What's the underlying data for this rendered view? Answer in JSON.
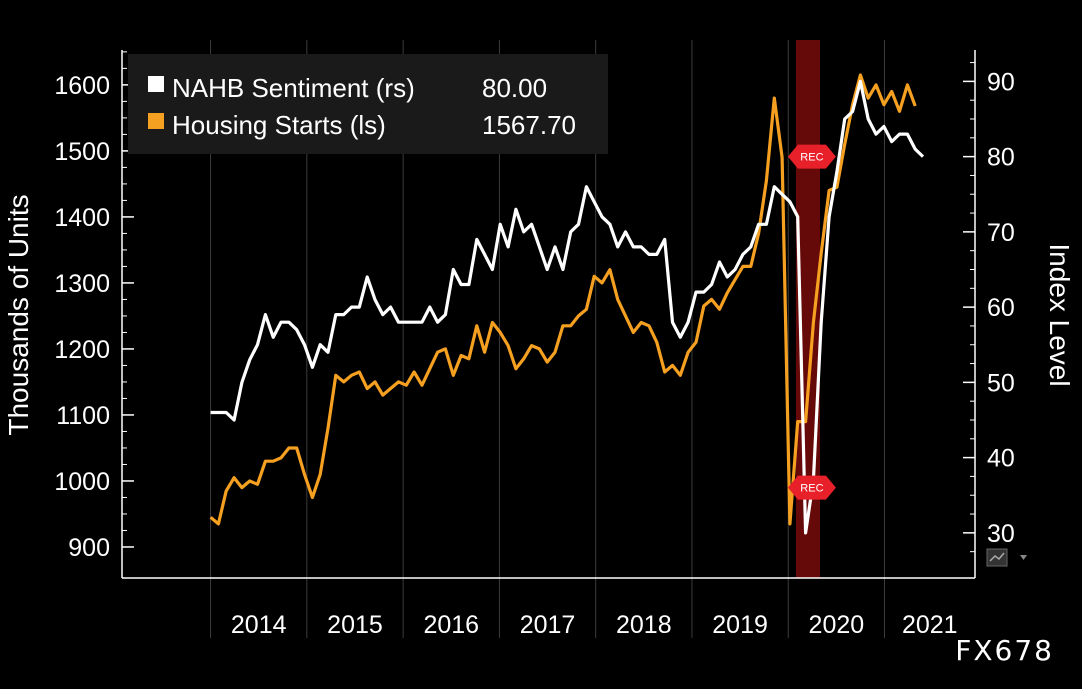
{
  "chart_data": {
    "type": "line",
    "title": "",
    "xlabel": "",
    "ylabel_left": "Thousands of Units",
    "ylabel_right": "Index Level",
    "x_start_year": 2014.0,
    "x_end_year": 2021.4,
    "xlim": [
      2013.08,
      2021.94
    ],
    "ylim_left": [
      853,
      1668
    ],
    "ylim_right": [
      24,
      95.5
    ],
    "left_ticks": [
      900,
      1000,
      1100,
      1200,
      1300,
      1400,
      1500,
      1600
    ],
    "right_ticks": [
      30,
      40,
      50,
      60,
      70,
      80,
      90
    ],
    "year_labels": [
      "2014",
      "2015",
      "2016",
      "2017",
      "2018",
      "2019",
      "2020",
      "2021"
    ],
    "recession_band": [
      2020.08,
      2020.33
    ],
    "series": [
      {
        "name": "NAHB Sentiment (rs)",
        "last_value": "80.00",
        "color": "#ffffff",
        "axis": "right",
        "values": [
          46,
          46,
          46,
          45,
          50,
          53,
          55,
          59,
          56,
          58,
          58,
          57,
          55,
          52,
          55,
          54,
          59,
          59,
          60,
          60,
          64,
          61,
          59,
          60,
          58,
          58,
          58,
          58,
          60,
          58,
          59,
          65,
          63,
          63,
          69,
          67,
          65,
          71,
          68,
          73,
          70,
          71,
          68,
          65,
          68,
          65,
          70,
          71,
          76,
          74,
          72,
          71,
          68,
          70,
          68,
          68,
          67,
          67,
          69,
          58,
          56,
          58,
          62,
          62,
          63,
          66,
          64,
          65,
          67,
          68,
          71,
          71,
          76,
          75,
          74,
          72,
          30,
          37,
          58,
          72,
          78,
          85,
          86,
          90,
          85,
          83,
          84,
          82,
          83,
          83,
          81,
          80
        ]
      },
      {
        "name": "Housing Starts (ls)",
        "last_value": "1567.70",
        "color": "#f5a020",
        "axis": "left",
        "values": [
          945,
          935,
          985,
          1005,
          990,
          1000,
          995,
          1030,
          1030,
          1035,
          1050,
          1050,
          1010,
          975,
          1010,
          1080,
          1160,
          1150,
          1160,
          1165,
          1140,
          1150,
          1130,
          1140,
          1150,
          1145,
          1165,
          1145,
          1170,
          1195,
          1200,
          1160,
          1190,
          1185,
          1235,
          1195,
          1240,
          1225,
          1205,
          1170,
          1185,
          1205,
          1200,
          1180,
          1195,
          1235,
          1235,
          1250,
          1260,
          1310,
          1300,
          1320,
          1275,
          1250,
          1225,
          1240,
          1235,
          1210,
          1165,
          1175,
          1160,
          1195,
          1210,
          1265,
          1275,
          1260,
          1285,
          1305,
          1325,
          1325,
          1375,
          1455,
          1580,
          1490,
          935,
          1090,
          1090,
          1240,
          1345,
          1440,
          1445,
          1510,
          1570,
          1615,
          1580,
          1600,
          1570,
          1590,
          1560,
          1600,
          1568
        ]
      }
    ],
    "annotations": [
      {
        "label": "REC",
        "series": "NAHB Sentiment (rs)",
        "value": 80
      },
      {
        "label": "REC",
        "series": "Housing Starts (ls)",
        "value": 990
      }
    ]
  },
  "watermark": "FX678"
}
